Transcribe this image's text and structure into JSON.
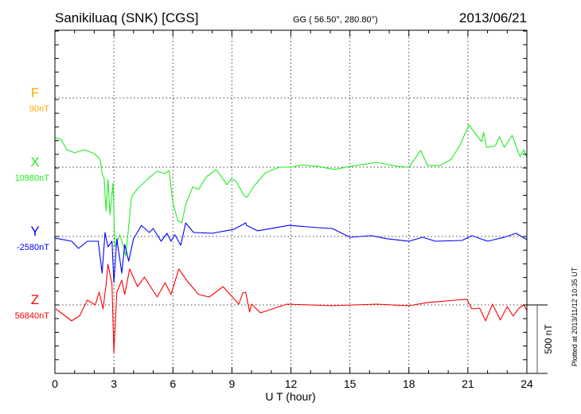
{
  "chart_data": {
    "type": "line",
    "title": "Sanikiluaq (SNK)  [CGS]",
    "subtitle": "GG ( 56.50°, 280.80°)",
    "date": "2013/06/21",
    "xlabel": "U T (hour)",
    "xlim": [
      0,
      24
    ],
    "xticks": [
      "0",
      "3",
      "6",
      "9",
      "12",
      "15",
      "18",
      "21",
      "24"
    ],
    "scale_label": "500 nT",
    "scale_nT": 500,
    "footer": "Plotted at 2013/11/12 10:35 UT",
    "grid": true,
    "series": [
      {
        "name": "F",
        "baseline_label": "90nT",
        "color": "#ffaa00",
        "points": []
      },
      {
        "name": "X",
        "baseline_label": "10980nT",
        "color": "#22ee22",
        "points": [
          [
            0,
            215
          ],
          [
            0.3,
            205
          ],
          [
            0.6,
            128
          ],
          [
            1.0,
            105
          ],
          [
            1.5,
            128
          ],
          [
            2.0,
            99
          ],
          [
            2.3,
            58
          ],
          [
            2.4,
            -47
          ],
          [
            2.5,
            -81
          ],
          [
            2.6,
            -320
          ],
          [
            2.7,
            -87
          ],
          [
            2.8,
            -349
          ],
          [
            2.95,
            -116
          ],
          [
            3.05,
            -581
          ],
          [
            3.3,
            -494
          ],
          [
            3.5,
            -581
          ],
          [
            3.6,
            -651
          ],
          [
            3.9,
            -215
          ],
          [
            4.2,
            -157
          ],
          [
            4.8,
            -76
          ],
          [
            5.2,
            -29
          ],
          [
            5.6,
            -47
          ],
          [
            5.8,
            -23
          ],
          [
            6.0,
            -262
          ],
          [
            6.25,
            -390
          ],
          [
            6.45,
            -407
          ],
          [
            6.65,
            -273
          ],
          [
            7.0,
            -145
          ],
          [
            7.3,
            -163
          ],
          [
            7.7,
            -70
          ],
          [
            8.2,
            -17
          ],
          [
            8.75,
            -128
          ],
          [
            8.95,
            -87
          ],
          [
            9.2,
            -99
          ],
          [
            9.6,
            -204
          ],
          [
            9.75,
            -221
          ],
          [
            10.15,
            -134
          ],
          [
            10.7,
            -41
          ],
          [
            11.4,
            0
          ],
          [
            12.05,
            0
          ],
          [
            12.6,
            17
          ],
          [
            13.4,
            5
          ],
          [
            14.2,
            -17
          ],
          [
            15.0,
            5
          ],
          [
            16.35,
            35
          ],
          [
            17.45,
            5
          ],
          [
            18.0,
            0
          ],
          [
            18.6,
            122
          ],
          [
            18.95,
            12
          ],
          [
            19.6,
            12
          ],
          [
            20.15,
            58
          ],
          [
            20.6,
            163
          ],
          [
            21.05,
            308
          ],
          [
            21.7,
            186
          ],
          [
            21.8,
            256
          ],
          [
            21.95,
            145
          ],
          [
            22.4,
            157
          ],
          [
            22.6,
            221
          ],
          [
            22.85,
            145
          ],
          [
            23.25,
            233
          ],
          [
            23.65,
            76
          ],
          [
            23.85,
            128
          ],
          [
            24,
            70
          ]
        ]
      },
      {
        "name": "Y",
        "baseline_label": "-2580nT",
        "color": "#0000ff",
        "points": [
          [
            0,
            -12
          ],
          [
            0.85,
            -35
          ],
          [
            1.2,
            -87
          ],
          [
            1.65,
            -35
          ],
          [
            2.2,
            -35
          ],
          [
            2.4,
            -267
          ],
          [
            2.55,
            29
          ],
          [
            2.7,
            -76
          ],
          [
            2.9,
            -35
          ],
          [
            3.0,
            -337
          ],
          [
            3.15,
            -17
          ],
          [
            3.3,
            -163
          ],
          [
            3.4,
            -267
          ],
          [
            3.55,
            -58
          ],
          [
            3.75,
            -180
          ],
          [
            4.0,
            -17
          ],
          [
            4.4,
            81
          ],
          [
            4.8,
            29
          ],
          [
            5.0,
            58
          ],
          [
            5.4,
            -35
          ],
          [
            5.7,
            23
          ],
          [
            5.9,
            -35
          ],
          [
            6.1,
            12
          ],
          [
            6.4,
            -64
          ],
          [
            6.65,
            99
          ],
          [
            7.05,
            29
          ],
          [
            8.0,
            23
          ],
          [
            9.1,
            52
          ],
          [
            9.7,
            99
          ],
          [
            9.75,
            81
          ],
          [
            10.3,
            41
          ],
          [
            11.9,
            81
          ],
          [
            13.4,
            64
          ],
          [
            14.1,
            58
          ],
          [
            15.0,
            -6
          ],
          [
            16.1,
            6
          ],
          [
            16.9,
            -17
          ],
          [
            18.0,
            -35
          ],
          [
            18.7,
            -6
          ],
          [
            19.35,
            -35
          ],
          [
            20.7,
            -29
          ],
          [
            21.2,
            6
          ],
          [
            22.0,
            -35
          ],
          [
            22.85,
            -6
          ],
          [
            23.45,
            23
          ],
          [
            24,
            -23
          ]
        ]
      },
      {
        "name": "Z",
        "baseline_label": "56840nT",
        "color": "#ff0000",
        "points": [
          [
            0.05,
            -29
          ],
          [
            0.85,
            -116
          ],
          [
            1.25,
            -81
          ],
          [
            1.65,
            35
          ],
          [
            2.05,
            0
          ],
          [
            2.25,
            93
          ],
          [
            2.45,
            -29
          ],
          [
            2.6,
            145
          ],
          [
            2.7,
            297
          ],
          [
            2.9,
            151
          ],
          [
            3.0,
            -349
          ],
          [
            3.15,
            93
          ],
          [
            3.4,
            180
          ],
          [
            3.55,
            76
          ],
          [
            3.8,
            262
          ],
          [
            4.2,
            134
          ],
          [
            4.55,
            203
          ],
          [
            5.2,
            58
          ],
          [
            5.6,
            163
          ],
          [
            5.9,
            76
          ],
          [
            6.3,
            262
          ],
          [
            6.7,
            180
          ],
          [
            7.3,
            76
          ],
          [
            7.85,
            58
          ],
          [
            8.55,
            134
          ],
          [
            9.35,
            6
          ],
          [
            9.55,
            87
          ],
          [
            9.7,
            93
          ],
          [
            9.9,
            -52
          ],
          [
            10.0,
            6
          ],
          [
            10.45,
            -58
          ],
          [
            11.8,
            6
          ],
          [
            14.1,
            -6
          ],
          [
            16.35,
            6
          ],
          [
            18.0,
            -6
          ],
          [
            18.95,
            17
          ],
          [
            20.35,
            35
          ],
          [
            20.95,
            41
          ],
          [
            21.2,
            -29
          ],
          [
            21.6,
            -23
          ],
          [
            21.9,
            -116
          ],
          [
            22.25,
            6
          ],
          [
            22.65,
            -110
          ],
          [
            23.0,
            -12
          ],
          [
            23.3,
            -81
          ],
          [
            23.6,
            -23
          ],
          [
            23.85,
            0
          ],
          [
            24,
            -41
          ]
        ]
      }
    ]
  }
}
